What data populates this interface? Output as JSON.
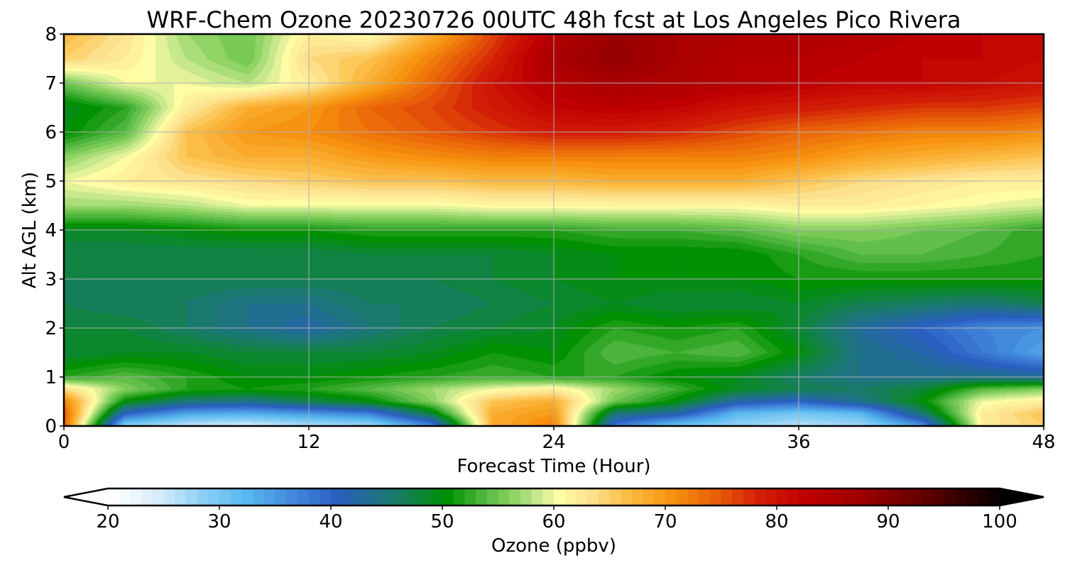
{
  "chart_data": {
    "type": "heatmap",
    "title": "WRF-Chem Ozone  20230726 00UTC 48h fcst at Los Angeles Pico Rivera",
    "xlabel": "Forecast Time (Hour)",
    "ylabel": "Alt AGL (km)",
    "xlim": [
      0,
      48
    ],
    "ylim": [
      0,
      8
    ],
    "xticks": [
      0,
      12,
      24,
      36,
      48
    ],
    "xtick_labels": [
      "0",
      "12",
      "24",
      "36",
      "48"
    ],
    "yticks": [
      0,
      1,
      2,
      3,
      4,
      5,
      6,
      7,
      8
    ],
    "ytick_labels": [
      "0",
      "1",
      "2",
      "3",
      "4",
      "5",
      "6",
      "7",
      "8"
    ],
    "grid": true,
    "x": [
      0,
      3,
      6,
      9,
      12,
      15,
      18,
      21,
      24,
      27,
      30,
      33,
      36,
      39,
      42,
      45,
      48
    ],
    "y": [
      0,
      0.25,
      0.5,
      0.75,
      1,
      1.5,
      2,
      2.5,
      3,
      3.5,
      4,
      4.5,
      5,
      5.5,
      6,
      6.5,
      7,
      7.5,
      8
    ],
    "z": [
      [
        75,
        28,
        25,
        24,
        26,
        27,
        36,
        68,
        72,
        38,
        30,
        28,
        26,
        27,
        35,
        62,
        65
      ],
      [
        75,
        40,
        34,
        33,
        35,
        37,
        48,
        68,
        70,
        45,
        42,
        32,
        30,
        32,
        45,
        62,
        66
      ],
      [
        72,
        50,
        45,
        44,
        47,
        50,
        56,
        66,
        68,
        55,
        50,
        42,
        40,
        44,
        50,
        60,
        62
      ],
      [
        64,
        56,
        52,
        51,
        52,
        54,
        57,
        60,
        62,
        57,
        53,
        49,
        47,
        46,
        48,
        54,
        56
      ],
      [
        52,
        54,
        52,
        50,
        50,
        51,
        52,
        53,
        52,
        52,
        50,
        49,
        46,
        44,
        44,
        44,
        43
      ],
      [
        48,
        49,
        49,
        48,
        48,
        48,
        49,
        51,
        50,
        54,
        53,
        54,
        50,
        44,
        42,
        38,
        34
      ],
      [
        48,
        48,
        46,
        44,
        42,
        45,
        47,
        48,
        49,
        52,
        51,
        52,
        48,
        43,
        40,
        37,
        36
      ],
      [
        47,
        46,
        46,
        44,
        44,
        46,
        46,
        47,
        48,
        49,
        48,
        48,
        49,
        47,
        46,
        45,
        47
      ],
      [
        47,
        47,
        47,
        47,
        47,
        47,
        47,
        48,
        49,
        50,
        50,
        50,
        51,
        51,
        51,
        51,
        51
      ],
      [
        47,
        47,
        47,
        47,
        47,
        48,
        48,
        48,
        49,
        50,
        50,
        50,
        52,
        54,
        54,
        53,
        52
      ],
      [
        49,
        49,
        50,
        51,
        51,
        52,
        52,
        52,
        52,
        53,
        53,
        54,
        56,
        56,
        55,
        54,
        52
      ],
      [
        57,
        57,
        58,
        60,
        60,
        60,
        60,
        61,
        61,
        61,
        61,
        61,
        62,
        62,
        61,
        60,
        59
      ],
      [
        60,
        62,
        63,
        64,
        65,
        66,
        66,
        67,
        67,
        68,
        68,
        68,
        66,
        64,
        63,
        62,
        62
      ],
      [
        56,
        60,
        66,
        68,
        68,
        70,
        71,
        72,
        72,
        72,
        72,
        72,
        71,
        69,
        68,
        67,
        66
      ],
      [
        50,
        54,
        66,
        70,
        71,
        73,
        75,
        77,
        79,
        79,
        78,
        76,
        74,
        73,
        72,
        72,
        71
      ],
      [
        49,
        52,
        62,
        68,
        70,
        74,
        76,
        79,
        82,
        83,
        82,
        80,
        79,
        78,
        77,
        77,
        76
      ],
      [
        55,
        60,
        60,
        58,
        62,
        68,
        74,
        80,
        84,
        86,
        85,
        84,
        83,
        82,
        82,
        81,
        80
      ],
      [
        65,
        62,
        58,
        55,
        64,
        66,
        72,
        78,
        86,
        89,
        86,
        84,
        84,
        83,
        82,
        82,
        81
      ],
      [
        67,
        63,
        57,
        55,
        62,
        60,
        68,
        76,
        84,
        88,
        86,
        85,
        85,
        84,
        83,
        82,
        81
      ]
    ],
    "colorbar": {
      "label": "Ozone  (ppbv)",
      "min": 20,
      "max": 100,
      "extend": "both",
      "ticks": [
        20,
        30,
        40,
        50,
        60,
        70,
        80,
        90,
        100
      ],
      "tick_labels": [
        "20",
        "30",
        "40",
        "50",
        "60",
        "70",
        "80",
        "90",
        "100"
      ],
      "colors": [
        {
          "v": 20,
          "c": "#ffffff"
        },
        {
          "v": 24,
          "c": "#d6ecfb"
        },
        {
          "v": 28,
          "c": "#8ccff5"
        },
        {
          "v": 32,
          "c": "#57b7ef"
        },
        {
          "v": 37,
          "c": "#3d7ed6"
        },
        {
          "v": 40,
          "c": "#2a5fc0"
        },
        {
          "v": 45,
          "c": "#1b7a70"
        },
        {
          "v": 50,
          "c": "#009000"
        },
        {
          "v": 53,
          "c": "#4cb43c"
        },
        {
          "v": 56,
          "c": "#8fd464"
        },
        {
          "v": 58,
          "c": "#c7e88c"
        },
        {
          "v": 60,
          "c": "#fefca4"
        },
        {
          "v": 63,
          "c": "#fde08c"
        },
        {
          "v": 66,
          "c": "#fbbd45"
        },
        {
          "v": 70,
          "c": "#f7930f"
        },
        {
          "v": 74,
          "c": "#e85f08"
        },
        {
          "v": 78,
          "c": "#d21e06"
        },
        {
          "v": 82,
          "c": "#c00000"
        },
        {
          "v": 87,
          "c": "#9e0000"
        },
        {
          "v": 92,
          "c": "#6a0000"
        },
        {
          "v": 97,
          "c": "#280000"
        },
        {
          "v": 100,
          "c": "#000000"
        }
      ]
    }
  }
}
